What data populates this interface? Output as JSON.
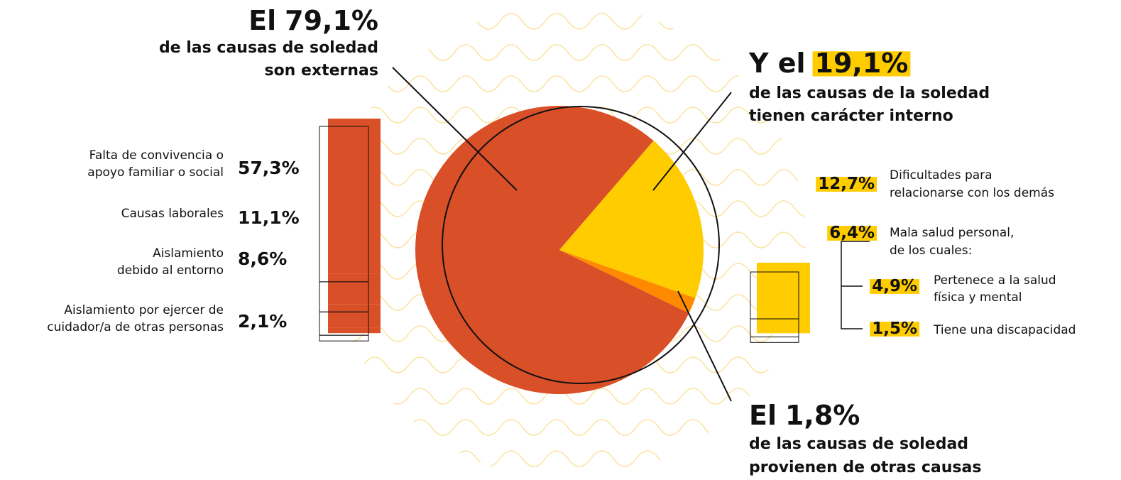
{
  "chart_data": [
    {
      "type": "pie",
      "values": [
        79.1,
        19.1,
        1.8
      ],
      "value_labels": [
        "79,1%",
        "19,1%",
        "1,8%"
      ],
      "colors": [
        "#d94f27",
        "#ffcc00",
        "#ff8a00"
      ],
      "annotations": [
        {
          "prefix": "El",
          "lines": [
            "de las causas de soledad",
            "son externas"
          ]
        },
        {
          "prefix": "Y el",
          "lines": [
            "de las causas de la soledad",
            "tienen carácter interno"
          ]
        },
        {
          "prefix": "El",
          "lines": [
            "de las causas de soledad",
            "provienen de otras causas"
          ]
        }
      ]
    },
    {
      "type": "stacked-bar",
      "categories": [
        [
          "Falta de convivencia o",
          "apoyo familiar o social"
        ],
        [
          "Causas laborales"
        ],
        [
          "Aislamiento",
          "debido al entorno"
        ],
        [
          "Aislamiento por ejercer de",
          "cuidador/a de otras personas"
        ]
      ],
      "values": [
        57.3,
        11.1,
        8.6,
        2.1
      ],
      "value_labels": [
        "57,3%",
        "11,1%",
        "8,6%",
        "2,1%"
      ],
      "color": "#d94f27"
    },
    {
      "type": "stacked-bar",
      "categories": [
        [
          "Dificultades para",
          "relacionarse con los demás"
        ],
        [
          "Mala salud personal,",
          "de los cuales:"
        ]
      ],
      "values": [
        12.7,
        6.4
      ],
      "value_labels": [
        "12,7%",
        "6,4%"
      ],
      "color": "#ffcc00",
      "breakdown": {
        "categories": [
          [
            "Pertenece a la salud",
            "física y mental"
          ],
          [
            "Tiene una discapacidad"
          ]
        ],
        "values": [
          4.9,
          1.5
        ],
        "value_labels": [
          "4,9%",
          "1,5%"
        ]
      }
    }
  ]
}
